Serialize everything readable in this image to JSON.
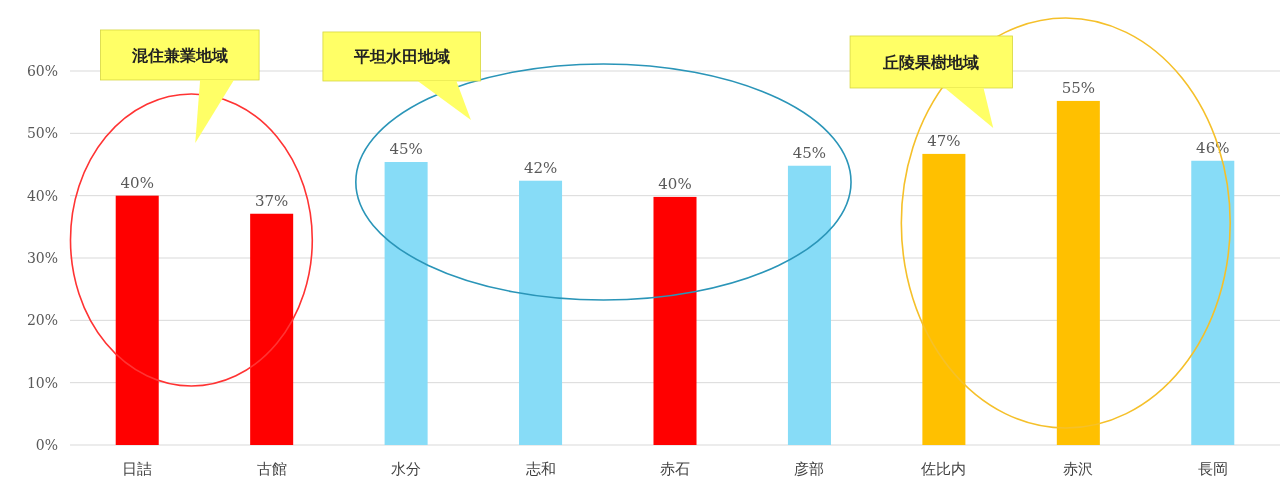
{
  "chart_data": {
    "type": "bar",
    "categories": [
      "日詰",
      "古館",
      "水分",
      "志和",
      "赤石",
      "彦部",
      "佐比内",
      "赤沢",
      "長岡"
    ],
    "values": [
      40.0,
      37.1,
      45.4,
      42.4,
      39.8,
      44.8,
      46.7,
      55.2,
      45.6
    ],
    "colors": [
      "#ff0000",
      "#ff0000",
      "#87dcf7",
      "#87dcf7",
      "#ff0000",
      "#87dcf7",
      "#ffc000",
      "#ffc000",
      "#87dcf7"
    ],
    "value_labels": [
      "40%",
      "37%",
      "45%",
      "42%",
      "40%",
      "45%",
      "47%",
      "55%",
      "46%"
    ],
    "ylim": [
      0,
      60
    ],
    "yticks": [
      {
        "value": 0,
        "label": "0%"
      },
      {
        "value": 10,
        "label": "10%"
      },
      {
        "value": 20,
        "label": "20%"
      },
      {
        "value": 30,
        "label": "30%"
      },
      {
        "value": 40,
        "label": "40%"
      },
      {
        "value": 50,
        "label": "50%"
      },
      {
        "value": 60,
        "label": "60%"
      }
    ],
    "grid": "y",
    "annotations": [
      "混住兼業地域",
      "平坦水田地域",
      "丘陵果樹地域"
    ]
  }
}
